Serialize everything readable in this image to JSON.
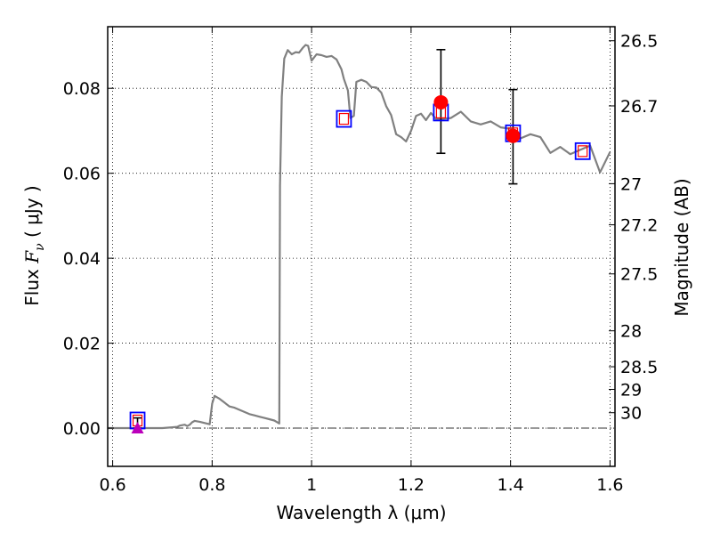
{
  "chart_data": {
    "type": "line",
    "title": "",
    "xlabel": "Wavelength  λ (μm)",
    "ylabel_parts": {
      "prefix": "Flux  ",
      "symbol": "F",
      "subscript": "ν",
      "unit": " ( μJy )"
    },
    "y2label": "Magnitude (AB)",
    "xlim": [
      0.59,
      1.61
    ],
    "ylim": [
      -0.009,
      0.0945
    ],
    "grid": true,
    "xticks": [
      {
        "value": 0.6,
        "label": "0.6"
      },
      {
        "value": 0.8,
        "label": "0.8"
      },
      {
        "value": 1.0,
        "label": "1"
      },
      {
        "value": 1.2,
        "label": "1.2"
      },
      {
        "value": 1.4,
        "label": "1.4"
      },
      {
        "value": 1.6,
        "label": "1.6"
      }
    ],
    "yticks": [
      {
        "value": 0.0,
        "label": "0.00"
      },
      {
        "value": 0.02,
        "label": "0.02"
      },
      {
        "value": 0.04,
        "label": "0.04"
      },
      {
        "value": 0.06,
        "label": "0.06"
      },
      {
        "value": 0.08,
        "label": "0.08"
      }
    ],
    "y2ticks": [
      {
        "value": 26.5,
        "label": "26.5"
      },
      {
        "value": 26.7,
        "label": "26.7"
      },
      {
        "value": 27.0,
        "label": "27"
      },
      {
        "value": 27.2,
        "label": "27.2"
      },
      {
        "value": 27.5,
        "label": "27.5"
      },
      {
        "value": 28.0,
        "label": "28"
      },
      {
        "value": 28.5,
        "label": "28.5"
      },
      {
        "value": 29.0,
        "label": "29"
      },
      {
        "value": 30.0,
        "label": "30"
      }
    ],
    "reference_line": {
      "y": 0.0,
      "style": "dash-dot"
    },
    "series": [
      {
        "kind": "model-spectrum",
        "color": "#808080",
        "x": [
          0.59,
          0.7,
          0.72,
          0.73,
          0.735,
          0.745,
          0.75,
          0.755,
          0.76,
          0.765,
          0.775,
          0.785,
          0.795,
          0.8,
          0.805,
          0.815,
          0.825,
          0.835,
          0.845,
          0.855,
          0.865,
          0.875,
          0.885,
          0.895,
          0.905,
          0.915,
          0.925,
          0.935,
          0.9365,
          0.94,
          0.945,
          0.952,
          0.96,
          0.968,
          0.975,
          0.982,
          0.988,
          0.993,
          1.0,
          1.01,
          1.02,
          1.03,
          1.04,
          1.05,
          1.06,
          1.065,
          1.073,
          1.078,
          1.085,
          1.09,
          1.1,
          1.11,
          1.12,
          1.13,
          1.14,
          1.15,
          1.16,
          1.17,
          1.18,
          1.19,
          1.2,
          1.21,
          1.22,
          1.23,
          1.24,
          1.25,
          1.26,
          1.28,
          1.3,
          1.32,
          1.34,
          1.36,
          1.38,
          1.4,
          1.42,
          1.44,
          1.46,
          1.48,
          1.5,
          1.52,
          1.54,
          1.56,
          1.58,
          1.6
        ],
        "y": [
          0.0,
          0.0,
          0.0002,
          0.0003,
          0.0006,
          0.0008,
          0.0005,
          0.0008,
          0.0014,
          0.0017,
          0.0015,
          0.0012,
          0.0009,
          0.0058,
          0.0076,
          0.0069,
          0.006,
          0.0051,
          0.0048,
          0.0043,
          0.0038,
          0.0033,
          0.003,
          0.0027,
          0.0024,
          0.0021,
          0.0018,
          0.0011,
          0.057,
          0.078,
          0.087,
          0.089,
          0.088,
          0.0885,
          0.0884,
          0.0895,
          0.0902,
          0.09,
          0.0865,
          0.088,
          0.0878,
          0.0874,
          0.0876,
          0.0868,
          0.0845,
          0.0822,
          0.0795,
          0.073,
          0.0735,
          0.0815,
          0.082,
          0.0815,
          0.0803,
          0.0802,
          0.079,
          0.0758,
          0.0737,
          0.0692,
          0.0685,
          0.0675,
          0.07,
          0.0735,
          0.074,
          0.0725,
          0.0742,
          0.0728,
          0.0728,
          0.073,
          0.0745,
          0.0722,
          0.0715,
          0.0722,
          0.0708,
          0.0705,
          0.0682,
          0.0692,
          0.0685,
          0.0648,
          0.0662,
          0.0645,
          0.0655,
          0.0665,
          0.0602,
          0.065
        ]
      },
      {
        "kind": "model-photometry",
        "marker": "open-square",
        "colors": {
          "outer": "#0000ff",
          "inner": "#ff0000"
        },
        "x": [
          0.65,
          1.065,
          1.26,
          1.405,
          1.545
        ],
        "y": [
          0.0018,
          0.0728,
          0.0743,
          0.0694,
          0.0652
        ]
      },
      {
        "kind": "observed-photometry",
        "marker": "filled-circle",
        "color": "#ff0000",
        "x": [
          1.26,
          1.405
        ],
        "y": [
          0.0767,
          0.0688
        ],
        "yerr_low": [
          0.0647,
          0.0575
        ],
        "yerr_high": [
          0.0891,
          0.0797
        ]
      },
      {
        "kind": "upper-limit",
        "marker": "triangle-up",
        "color": "#bb00bb",
        "x": [
          0.65
        ],
        "y": [
          0.0
        ],
        "yerr_low": [
          0.0
        ],
        "yerr_high": [
          0.0024
        ]
      }
    ]
  }
}
